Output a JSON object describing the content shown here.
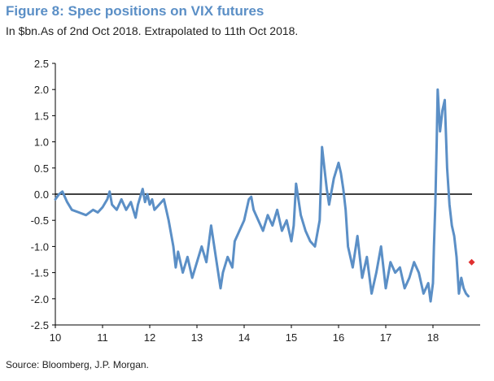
{
  "title": "Figure 8: Spec positions on VIX futures",
  "subtitle": "In $bn.As of 2nd Oct 2018. Extrapolated to 11th Oct 2018.",
  "source": "Source:  Bloomberg, J.P. Morgan.",
  "chart_data": {
    "type": "line",
    "title": "Figure 8: Spec positions on VIX futures",
    "xlabel": "",
    "ylabel": "",
    "xlim": [
      10,
      18.8
    ],
    "ylim": [
      -2.5,
      2.5
    ],
    "grid": false,
    "x_ticks": [
      "10",
      "11",
      "12",
      "13",
      "14",
      "15",
      "16",
      "17",
      "18"
    ],
    "y_ticks": [
      "2.5",
      "2.0",
      "1.5",
      "1.0",
      "0.5",
      "0.0",
      "-0.5",
      "-1.0",
      "-1.5",
      "-2.0",
      "-2.5"
    ],
    "series": [
      {
        "color": "#5b8fc6",
        "x": [
          10.0,
          10.08,
          10.15,
          10.25,
          10.35,
          10.5,
          10.65,
          10.8,
          10.9,
          11.0,
          11.1,
          11.15,
          11.2,
          11.3,
          11.4,
          11.5,
          11.6,
          11.7,
          11.75,
          11.85,
          11.9,
          11.95,
          12.0,
          12.05,
          12.1,
          12.2,
          12.3,
          12.4,
          12.5,
          12.55,
          12.6,
          12.7,
          12.8,
          12.9,
          13.0,
          13.1,
          13.2,
          13.3,
          13.4,
          13.5,
          13.55,
          13.65,
          13.75,
          13.8,
          13.9,
          14.0,
          14.1,
          14.15,
          14.2,
          14.3,
          14.4,
          14.5,
          14.6,
          14.7,
          14.8,
          14.9,
          15.0,
          15.05,
          15.1,
          15.2,
          15.3,
          15.4,
          15.5,
          15.6,
          15.65,
          15.7,
          15.75,
          15.8,
          15.9,
          16.0,
          16.05,
          16.1,
          16.15,
          16.2,
          16.3,
          16.4,
          16.5,
          16.6,
          16.7,
          16.8,
          16.9,
          17.0,
          17.1,
          17.2,
          17.3,
          17.4,
          17.5,
          17.6,
          17.7,
          17.8,
          17.9,
          17.95,
          18.0,
          18.02,
          18.05,
          18.08,
          18.1,
          18.15,
          18.2,
          18.25,
          18.3,
          18.35,
          18.4,
          18.45,
          18.5,
          18.55,
          18.6,
          18.65,
          18.7,
          18.75
        ],
        "y": [
          -0.1,
          0.0,
          0.05,
          -0.15,
          -0.3,
          -0.35,
          -0.4,
          -0.3,
          -0.35,
          -0.25,
          -0.1,
          0.05,
          -0.2,
          -0.3,
          -0.1,
          -0.3,
          -0.15,
          -0.45,
          -0.2,
          0.1,
          -0.15,
          0.0,
          -0.2,
          -0.1,
          -0.3,
          -0.2,
          -0.1,
          -0.5,
          -1.0,
          -1.4,
          -1.1,
          -1.5,
          -1.2,
          -1.6,
          -1.3,
          -1.0,
          -1.3,
          -0.6,
          -1.2,
          -1.8,
          -1.5,
          -1.2,
          -1.4,
          -0.9,
          -0.7,
          -0.5,
          -0.1,
          -0.05,
          -0.3,
          -0.5,
          -0.7,
          -0.4,
          -0.6,
          -0.3,
          -0.7,
          -0.5,
          -0.9,
          -0.6,
          0.2,
          -0.4,
          -0.7,
          -0.9,
          -1.0,
          -0.5,
          0.9,
          0.5,
          0.1,
          -0.2,
          0.3,
          0.6,
          0.4,
          0.1,
          -0.3,
          -1.0,
          -1.4,
          -0.8,
          -1.6,
          -1.2,
          -1.9,
          -1.5,
          -1.0,
          -1.8,
          -1.3,
          -1.5,
          -1.4,
          -1.8,
          -1.6,
          -1.3,
          -1.5,
          -1.9,
          -1.7,
          -2.05,
          -1.7,
          -1.0,
          -0.2,
          1.0,
          2.0,
          1.2,
          1.6,
          1.8,
          0.5,
          -0.2,
          -0.6,
          -0.8,
          -1.2,
          -1.9,
          -1.6,
          -1.8,
          -1.9,
          -1.95
        ]
      }
    ],
    "annotations": [
      {
        "type": "marker",
        "x": 18.82,
        "y": -1.3,
        "color": "#e03030",
        "shape": "diamond"
      }
    ]
  }
}
